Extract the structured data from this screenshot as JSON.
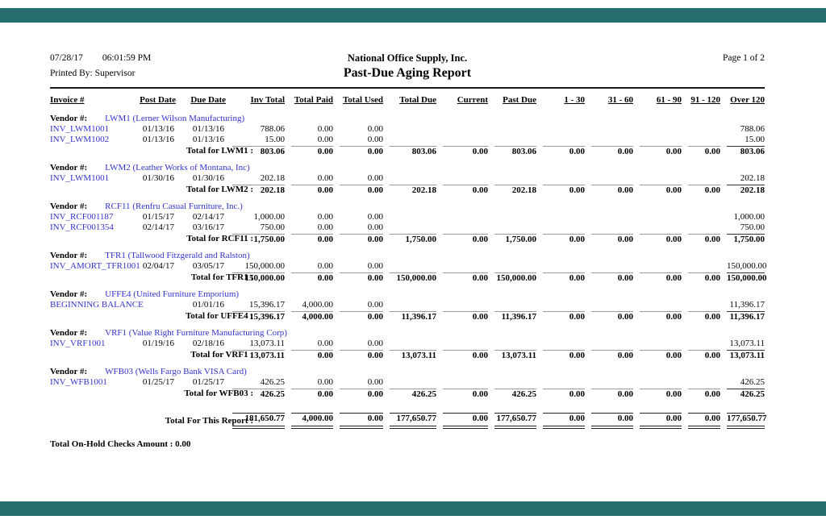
{
  "report": {
    "date": "07/28/17",
    "time": "06:01:59 PM",
    "printed_by": "Printed By: Supervisor",
    "company": "National Office Supply, Inc.",
    "title": "Past-Due Aging Report",
    "page_label": "Page 1 of 2",
    "on_hold_note": "Total On-Hold Checks Amount : 0.00"
  },
  "colors": {
    "accent_bar": "#256d6f",
    "link": "#3333cc"
  },
  "table": {
    "vendor_label": "Vendor #:",
    "columns": [
      "Invoice #",
      "Post Date",
      "Due Date",
      "Inv Total",
      "Total Paid",
      "Total Used",
      "Total Due",
      "Current",
      "Past Due",
      "1 - 30",
      "31 - 60",
      "61 - 90",
      "91 - 120",
      "Over 120"
    ],
    "sections": [
      {
        "vendor": "LWM1 (Lerner Wilson Manufacturing)",
        "rows": [
          [
            "INV_LWM1001",
            "01/13/16",
            "01/13/16",
            "788.06",
            "0.00",
            "0.00",
            "",
            "",
            "",
            "",
            "",
            "",
            "",
            "788.06"
          ],
          [
            "INV_LWM1002",
            "01/13/16",
            "01/13/16",
            "15.00",
            "0.00",
            "0.00",
            "",
            "",
            "",
            "",
            "",
            "",
            "",
            "15.00"
          ]
        ],
        "total_label": "Total for LWM1 :",
        "totals": [
          "803.06",
          "0.00",
          "0.00",
          "803.06",
          "0.00",
          "803.06",
          "0.00",
          "0.00",
          "0.00",
          "0.00",
          "803.06"
        ]
      },
      {
        "vendor": "LWM2 (Leather Works of Montana, Inc)",
        "rows": [
          [
            "INV_LWM1001",
            "01/30/16",
            "01/30/16",
            "202.18",
            "0.00",
            "0.00",
            "",
            "",
            "",
            "",
            "",
            "",
            "",
            "202.18"
          ]
        ],
        "total_label": "Total for LWM2 :",
        "totals": [
          "202.18",
          "0.00",
          "0.00",
          "202.18",
          "0.00",
          "202.18",
          "0.00",
          "0.00",
          "0.00",
          "0.00",
          "202.18"
        ]
      },
      {
        "vendor": "RCF11 (Renfru Casual Furniture, Inc.)",
        "rows": [
          [
            "INV_RCF001187",
            "01/15/17",
            "02/14/17",
            "1,000.00",
            "0.00",
            "0.00",
            "",
            "",
            "",
            "",
            "",
            "",
            "",
            "1,000.00"
          ],
          [
            "INV_RCF001354",
            "02/14/17",
            "03/16/17",
            "750.00",
            "0.00",
            "0.00",
            "",
            "",
            "",
            "",
            "",
            "",
            "",
            "750.00"
          ]
        ],
        "total_label": "Total for RCF11 :",
        "totals": [
          "1,750.00",
          "0.00",
          "0.00",
          "1,750.00",
          "0.00",
          "1,750.00",
          "0.00",
          "0.00",
          "0.00",
          "0.00",
          "1,750.00"
        ]
      },
      {
        "vendor": "TFR1 (Tallwood Fitzgerald and Ralston)",
        "rows": [
          [
            "INV_AMORT_TFR1001",
            "02/04/17",
            "03/05/17",
            "150,000.00",
            "0.00",
            "0.00",
            "",
            "",
            "",
            "",
            "",
            "",
            "",
            "150,000.00"
          ]
        ],
        "total_label": "Total for TFR1 :",
        "totals": [
          "150,000.00",
          "0.00",
          "0.00",
          "150,000.00",
          "0.00",
          "150,000.00",
          "0.00",
          "0.00",
          "0.00",
          "0.00",
          "150,000.00"
        ]
      },
      {
        "vendor": "UFFE4 (United Furniture Emporium)",
        "rows": [
          [
            "BEGINNING BALANCE",
            "",
            "01/01/16",
            "15,396.17",
            "4,000.00",
            "0.00",
            "",
            "",
            "",
            "",
            "",
            "",
            "",
            "11,396.17"
          ]
        ],
        "total_label": "Total for UFFE4 :",
        "totals": [
          "15,396.17",
          "4,000.00",
          "0.00",
          "11,396.17",
          "0.00",
          "11,396.17",
          "0.00",
          "0.00",
          "0.00",
          "0.00",
          "11,396.17"
        ]
      },
      {
        "vendor": "VRF1 (Value Right Furniture Manufacturing Corp)",
        "rows": [
          [
            "INV_VRF1001",
            "01/19/16",
            "02/18/16",
            "13,073.11",
            "0.00",
            "0.00",
            "",
            "",
            "",
            "",
            "",
            "",
            "",
            "13,073.11"
          ]
        ],
        "total_label": "Total for VRF1 :",
        "totals": [
          "13,073.11",
          "0.00",
          "0.00",
          "13,073.11",
          "0.00",
          "13,073.11",
          "0.00",
          "0.00",
          "0.00",
          "0.00",
          "13,073.11"
        ]
      },
      {
        "vendor": "WFB03 (Wells Fargo Bank VISA Card)",
        "rows": [
          [
            "INV_WFB1001",
            "01/25/17",
            "01/25/17",
            "426.25",
            "0.00",
            "0.00",
            "",
            "",
            "",
            "",
            "",
            "",
            "",
            "426.25"
          ]
        ],
        "total_label": "Total for WFB03 :",
        "totals": [
          "426.25",
          "0.00",
          "0.00",
          "426.25",
          "0.00",
          "426.25",
          "0.00",
          "0.00",
          "0.00",
          "0.00",
          "426.25"
        ]
      }
    ],
    "report_total_label": "Total For This Report :",
    "report_totals": [
      "181,650.77",
      "4,000.00",
      "0.00",
      "177,650.77",
      "0.00",
      "177,650.77",
      "0.00",
      "0.00",
      "0.00",
      "0.00",
      "177,650.77"
    ]
  }
}
